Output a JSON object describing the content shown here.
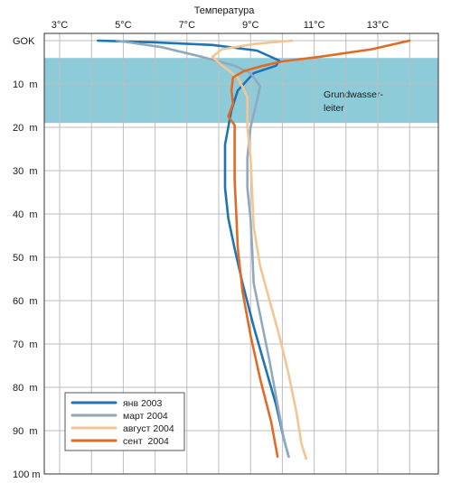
{
  "chart_data": {
    "type": "line",
    "title": "",
    "xlabel": "Температура",
    "ylabel": "",
    "x_unit": "°C",
    "y_unit": "m",
    "xlim": [
      2.7,
      15.0
    ],
    "ylim": [
      0,
      100
    ],
    "x_ticks": [
      3,
      5,
      7,
      9,
      11,
      13
    ],
    "x_tick_labels": [
      "3°C",
      "5°C",
      "7°C",
      "9°C",
      "11°C",
      "13°C"
    ],
    "y_ticks": [
      0,
      10,
      20,
      30,
      40,
      50,
      60,
      70,
      80,
      90,
      100
    ],
    "y_tick_labels": [
      "GOK",
      "10  m",
      "20  m",
      "30  m",
      "40  m",
      "50  m",
      "60  m",
      "70  m",
      "80  m",
      "90  m",
      "100 m"
    ],
    "grid": true,
    "legend_position": "bottom-left",
    "annotation": {
      "text_lines": [
        "Grundwasser-",
        "leiter"
      ],
      "depth_range": [
        4,
        19
      ],
      "color": "#8ecbd9"
    },
    "series": [
      {
        "name": "янв 2003",
        "color": "#1f74b4",
        "points": [
          [
            4.2,
            0
          ],
          [
            6.0,
            0.4
          ],
          [
            7.8,
            1.0
          ],
          [
            9.2,
            2.3
          ],
          [
            9.9,
            4.6
          ],
          [
            9.8,
            5.8
          ],
          [
            9.1,
            7.5
          ],
          [
            8.6,
            11.5
          ],
          [
            8.4,
            16
          ],
          [
            8.2,
            24
          ],
          [
            8.2,
            34
          ],
          [
            8.3,
            41
          ],
          [
            8.5,
            48
          ],
          [
            8.75,
            56
          ],
          [
            9.1,
            66
          ],
          [
            9.45,
            75
          ],
          [
            9.8,
            84
          ],
          [
            10.05,
            92
          ],
          [
            10.2,
            96
          ]
        ]
      },
      {
        "name": "март 2004",
        "color": "#8fa9bf",
        "points": [
          [
            4.8,
            0
          ],
          [
            6.2,
            1.5
          ],
          [
            7.5,
            3.8
          ],
          [
            8.5,
            5.8
          ],
          [
            9.0,
            7.5
          ],
          [
            9.3,
            10.5
          ],
          [
            9.2,
            14
          ],
          [
            9.0,
            20
          ],
          [
            8.9,
            27
          ],
          [
            8.9,
            34
          ],
          [
            9.0,
            41
          ],
          [
            9.05,
            48
          ],
          [
            9.1,
            56
          ],
          [
            9.35,
            65
          ],
          [
            9.6,
            74
          ],
          [
            9.85,
            84
          ],
          [
            10.05,
            92
          ],
          [
            10.2,
            96
          ]
        ]
      },
      {
        "name": "август 2004",
        "color": "#f3c594",
        "points": [
          [
            10.3,
            0
          ],
          [
            9.1,
            0.8
          ],
          [
            8.1,
            2.0
          ],
          [
            7.8,
            3.7
          ],
          [
            8.1,
            5.7
          ],
          [
            8.6,
            8.5
          ],
          [
            8.9,
            13
          ],
          [
            8.9,
            20
          ],
          [
            9.0,
            27
          ],
          [
            9.05,
            35
          ],
          [
            9.1,
            43
          ],
          [
            9.3,
            52
          ],
          [
            9.6,
            60
          ],
          [
            9.9,
            68
          ],
          [
            10.2,
            77
          ],
          [
            10.45,
            86
          ],
          [
            10.6,
            93
          ],
          [
            10.75,
            96.5
          ]
        ]
      },
      {
        "name": "сент  2004",
        "color": "#df6b26",
        "points": [
          [
            14.0,
            0
          ],
          [
            12.8,
            2.0
          ],
          [
            11.2,
            3.7
          ],
          [
            10.0,
            4.8
          ],
          [
            9.4,
            5.8
          ],
          [
            8.8,
            7.0
          ],
          [
            8.45,
            8.5
          ],
          [
            8.4,
            11.5
          ],
          [
            8.45,
            14.5
          ],
          [
            8.3,
            17.5
          ],
          [
            8.5,
            19.5
          ],
          [
            8.5,
            25
          ],
          [
            8.5,
            32
          ],
          [
            8.55,
            40
          ],
          [
            8.6,
            48
          ],
          [
            8.75,
            58
          ],
          [
            9.0,
            68
          ],
          [
            9.3,
            78
          ],
          [
            9.65,
            88
          ],
          [
            9.85,
            96
          ]
        ]
      }
    ]
  }
}
